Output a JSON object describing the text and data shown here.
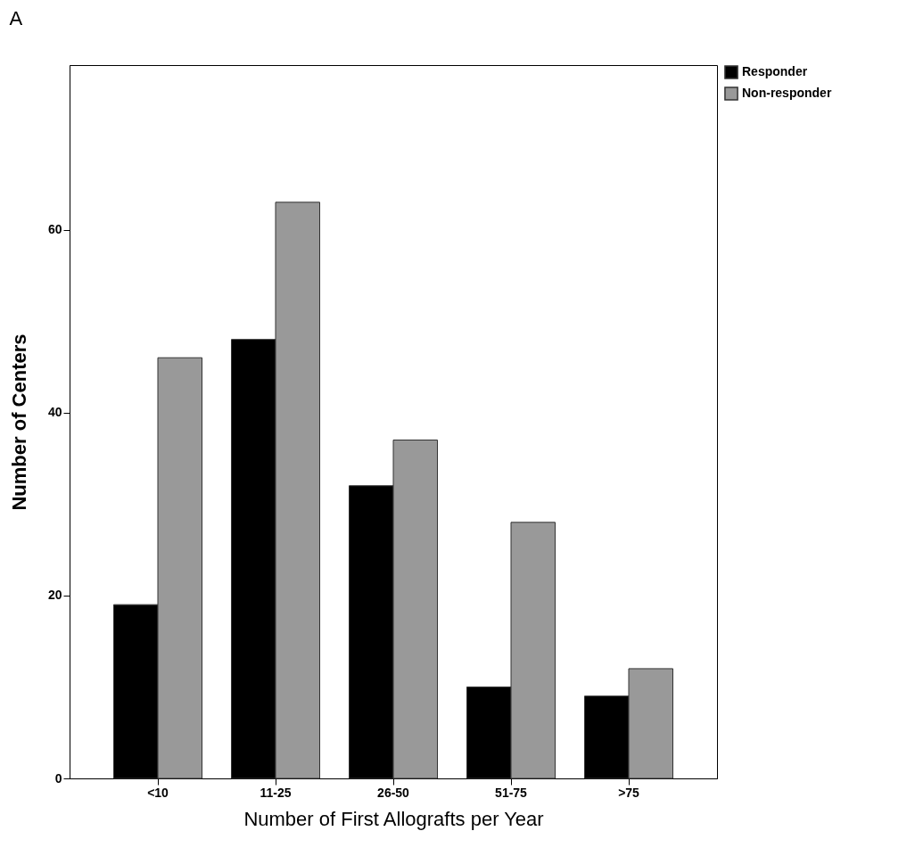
{
  "chart_data": {
    "type": "bar",
    "annotations": [
      "A"
    ],
    "xlabel": "Number of First Allografts per Year",
    "ylabel": "Number of Centers",
    "categories": [
      "<10",
      "11-25",
      "26-50",
      "51-75",
      ">75"
    ],
    "series": [
      {
        "name": "Responder",
        "color": "#000000",
        "values": [
          19,
          48,
          32,
          10,
          9
        ]
      },
      {
        "name": "Non-responder",
        "color": "#999999",
        "values": [
          46,
          63,
          37,
          28,
          12
        ]
      }
    ],
    "ylim": [
      0,
      78
    ],
    "yticks": [
      0,
      20,
      40,
      60
    ],
    "grid": false,
    "legend": "top right"
  }
}
